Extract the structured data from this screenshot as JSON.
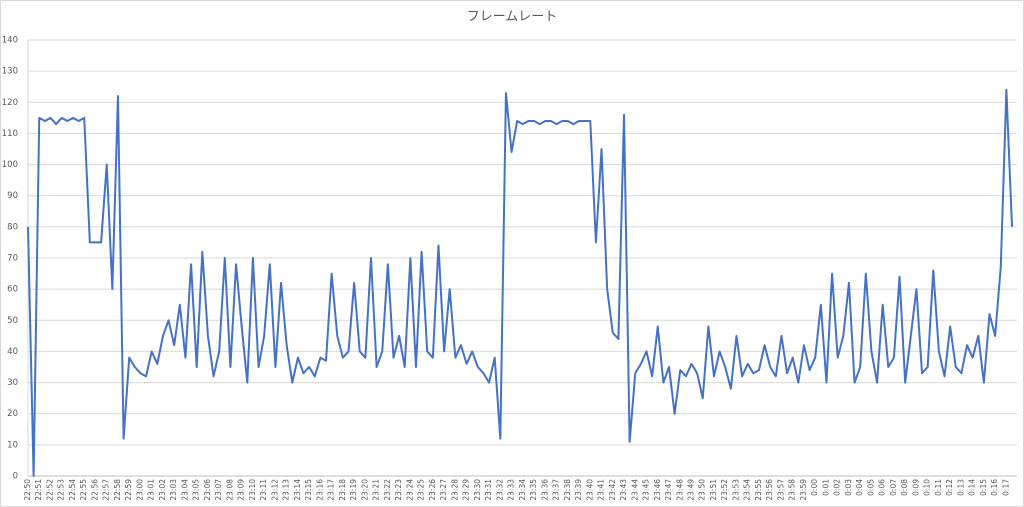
{
  "chart_data": {
    "type": "line",
    "title": "フレームレート",
    "categories": [
      "22:50",
      null,
      "22:51",
      null,
      "22:52",
      null,
      "22:53",
      null,
      "22:54",
      null,
      "22:55",
      null,
      "22:56",
      null,
      "22:57",
      null,
      "22:58",
      null,
      "22:59",
      null,
      "23:00",
      null,
      "23:01",
      null,
      "23:02",
      null,
      "23:03",
      null,
      "23:04",
      null,
      "23:05",
      null,
      "23:06",
      null,
      "23:07",
      null,
      "23:08",
      null,
      "23:09",
      null,
      "23:10",
      null,
      "23:11",
      null,
      "23:12",
      null,
      "23:13",
      null,
      "23:14",
      null,
      "23:15",
      null,
      "23:16",
      null,
      "23:17",
      null,
      "23:18",
      null,
      "23:19",
      null,
      "23:20",
      null,
      "23:21",
      null,
      "23:22",
      null,
      "23:23",
      null,
      "23:24",
      null,
      "23:25",
      null,
      "23:26",
      null,
      "23:27",
      null,
      "23:28",
      null,
      "23:29",
      null,
      "23:30",
      null,
      "23:31",
      null,
      "23:32",
      null,
      "23:33",
      null,
      "23:34",
      null,
      "23:35",
      null,
      "23:36",
      null,
      "23:37",
      null,
      "23:38",
      null,
      "23:39",
      null,
      "23:40",
      null,
      "23:41",
      null,
      "23:42",
      null,
      "23:43",
      null,
      "23:44",
      null,
      "23:45",
      null,
      "23:46",
      null,
      "23:47",
      null,
      "23:48",
      null,
      "23:49",
      null,
      "23:50",
      null,
      "23:51",
      null,
      "23:52",
      null,
      "23:53",
      null,
      "23:54",
      null,
      "23:55",
      null,
      "23:56",
      null,
      "23:57",
      null,
      "23:58",
      null,
      "23:59",
      null,
      "0:00",
      null,
      "0:01",
      null,
      "0:02",
      null,
      "0:03",
      null,
      "0:04",
      null,
      "0:05",
      null,
      "0:06",
      null,
      "0:07",
      null,
      "0:08",
      null,
      "0:09",
      null,
      "0:10",
      null,
      "0:11",
      null,
      "0:12",
      null,
      "0:13",
      null,
      "0:14",
      null,
      "0:15",
      null,
      "0:16",
      null,
      "0:17",
      null
    ],
    "values": [
      80,
      0,
      115,
      114,
      115,
      113,
      115,
      114,
      115,
      114,
      115,
      75,
      75,
      75,
      100,
      60,
      122,
      12,
      38,
      35,
      33,
      32,
      40,
      36,
      45,
      50,
      42,
      55,
      38,
      68,
      35,
      72,
      45,
      32,
      40,
      70,
      35,
      68,
      48,
      30,
      70,
      35,
      45,
      68,
      35,
      62,
      42,
      30,
      38,
      33,
      35,
      32,
      38,
      37,
      65,
      45,
      38,
      40,
      62,
      40,
      38,
      70,
      35,
      40,
      68,
      38,
      45,
      35,
      70,
      35,
      72,
      40,
      38,
      74,
      40,
      60,
      38,
      42,
      36,
      40,
      35,
      33,
      30,
      38,
      12,
      123,
      104,
      114,
      113,
      114,
      114,
      113,
      114,
      114,
      113,
      114,
      114,
      113,
      114,
      114,
      114,
      75,
      105,
      60,
      46,
      44,
      116,
      11,
      33,
      36,
      40,
      32,
      48,
      30,
      35,
      20,
      34,
      32,
      36,
      33,
      25,
      48,
      32,
      40,
      35,
      28,
      45,
      32,
      36,
      33,
      34,
      42,
      35,
      32,
      45,
      33,
      38,
      30,
      42,
      34,
      38,
      55,
      30,
      65,
      38,
      45,
      62,
      30,
      35,
      65,
      40,
      30,
      55,
      35,
      38,
      64,
      30,
      45,
      60,
      33,
      35,
      66,
      40,
      32,
      48,
      35,
      33,
      42,
      38,
      45,
      30,
      52,
      45,
      67,
      124,
      80
    ],
    "color": "#4472c4",
    "ylim": [
      0,
      140
    ],
    "yticks": [
      0,
      10,
      20,
      30,
      40,
      50,
      60,
      70,
      80,
      90,
      100,
      110,
      120,
      130,
      140
    ],
    "grid": true
  }
}
